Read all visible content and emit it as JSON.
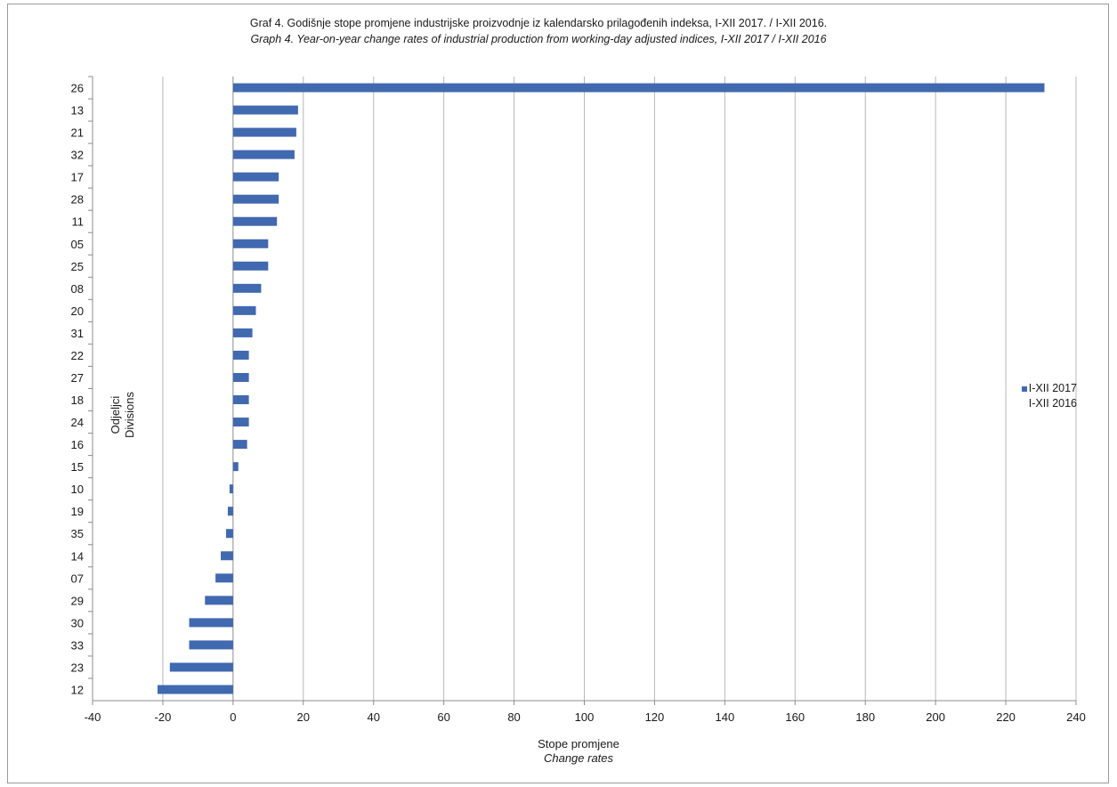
{
  "chart_data": {
    "type": "bar",
    "orientation": "horizontal",
    "title": "Graf 4. Godišnje stope promjene industrijske proizvodnje iz kalendarsko prilagođenih indeksa, I-XII 2017. / I-XII 2016.",
    "subtitle": "Graph 4. Year-on-year change rates of industrial production from working-day adjusted indices, I-XII 2017 / I-XII 2016",
    "ylabel": [
      "Odjeljci",
      "Divisions"
    ],
    "xlabel": [
      "Stope promjene",
      "Change rates"
    ],
    "categories": [
      "26",
      "13",
      "21",
      "32",
      "17",
      "28",
      "11",
      "05",
      "25",
      "08",
      "20",
      "31",
      "22",
      "27",
      "18",
      "24",
      "16",
      "15",
      "10",
      "19",
      "35",
      "14",
      "07",
      "29",
      "30",
      "33",
      "23",
      "12"
    ],
    "series": [
      {
        "name": "I-XII 2017 / I-XII 2016",
        "values": [
          231,
          18.5,
          18,
          17.5,
          13,
          13,
          12.5,
          10,
          10,
          8,
          6.5,
          5.5,
          4.5,
          4.5,
          4.5,
          4.5,
          4,
          1.5,
          -1,
          -1.5,
          -2,
          -3.5,
          -5,
          -8,
          -12.5,
          -12.5,
          -18,
          -21.5
        ]
      }
    ],
    "xlim": [
      -40,
      240
    ],
    "xticks": [
      -40,
      -20,
      0,
      20,
      40,
      60,
      80,
      100,
      120,
      140,
      160,
      180,
      200,
      220,
      240
    ],
    "grid": "vertical",
    "legend_position": "right",
    "bar_color": "#4169b0"
  },
  "legend": {
    "line1": "I-XII 2017",
    "line2": "I-XII 2016"
  }
}
